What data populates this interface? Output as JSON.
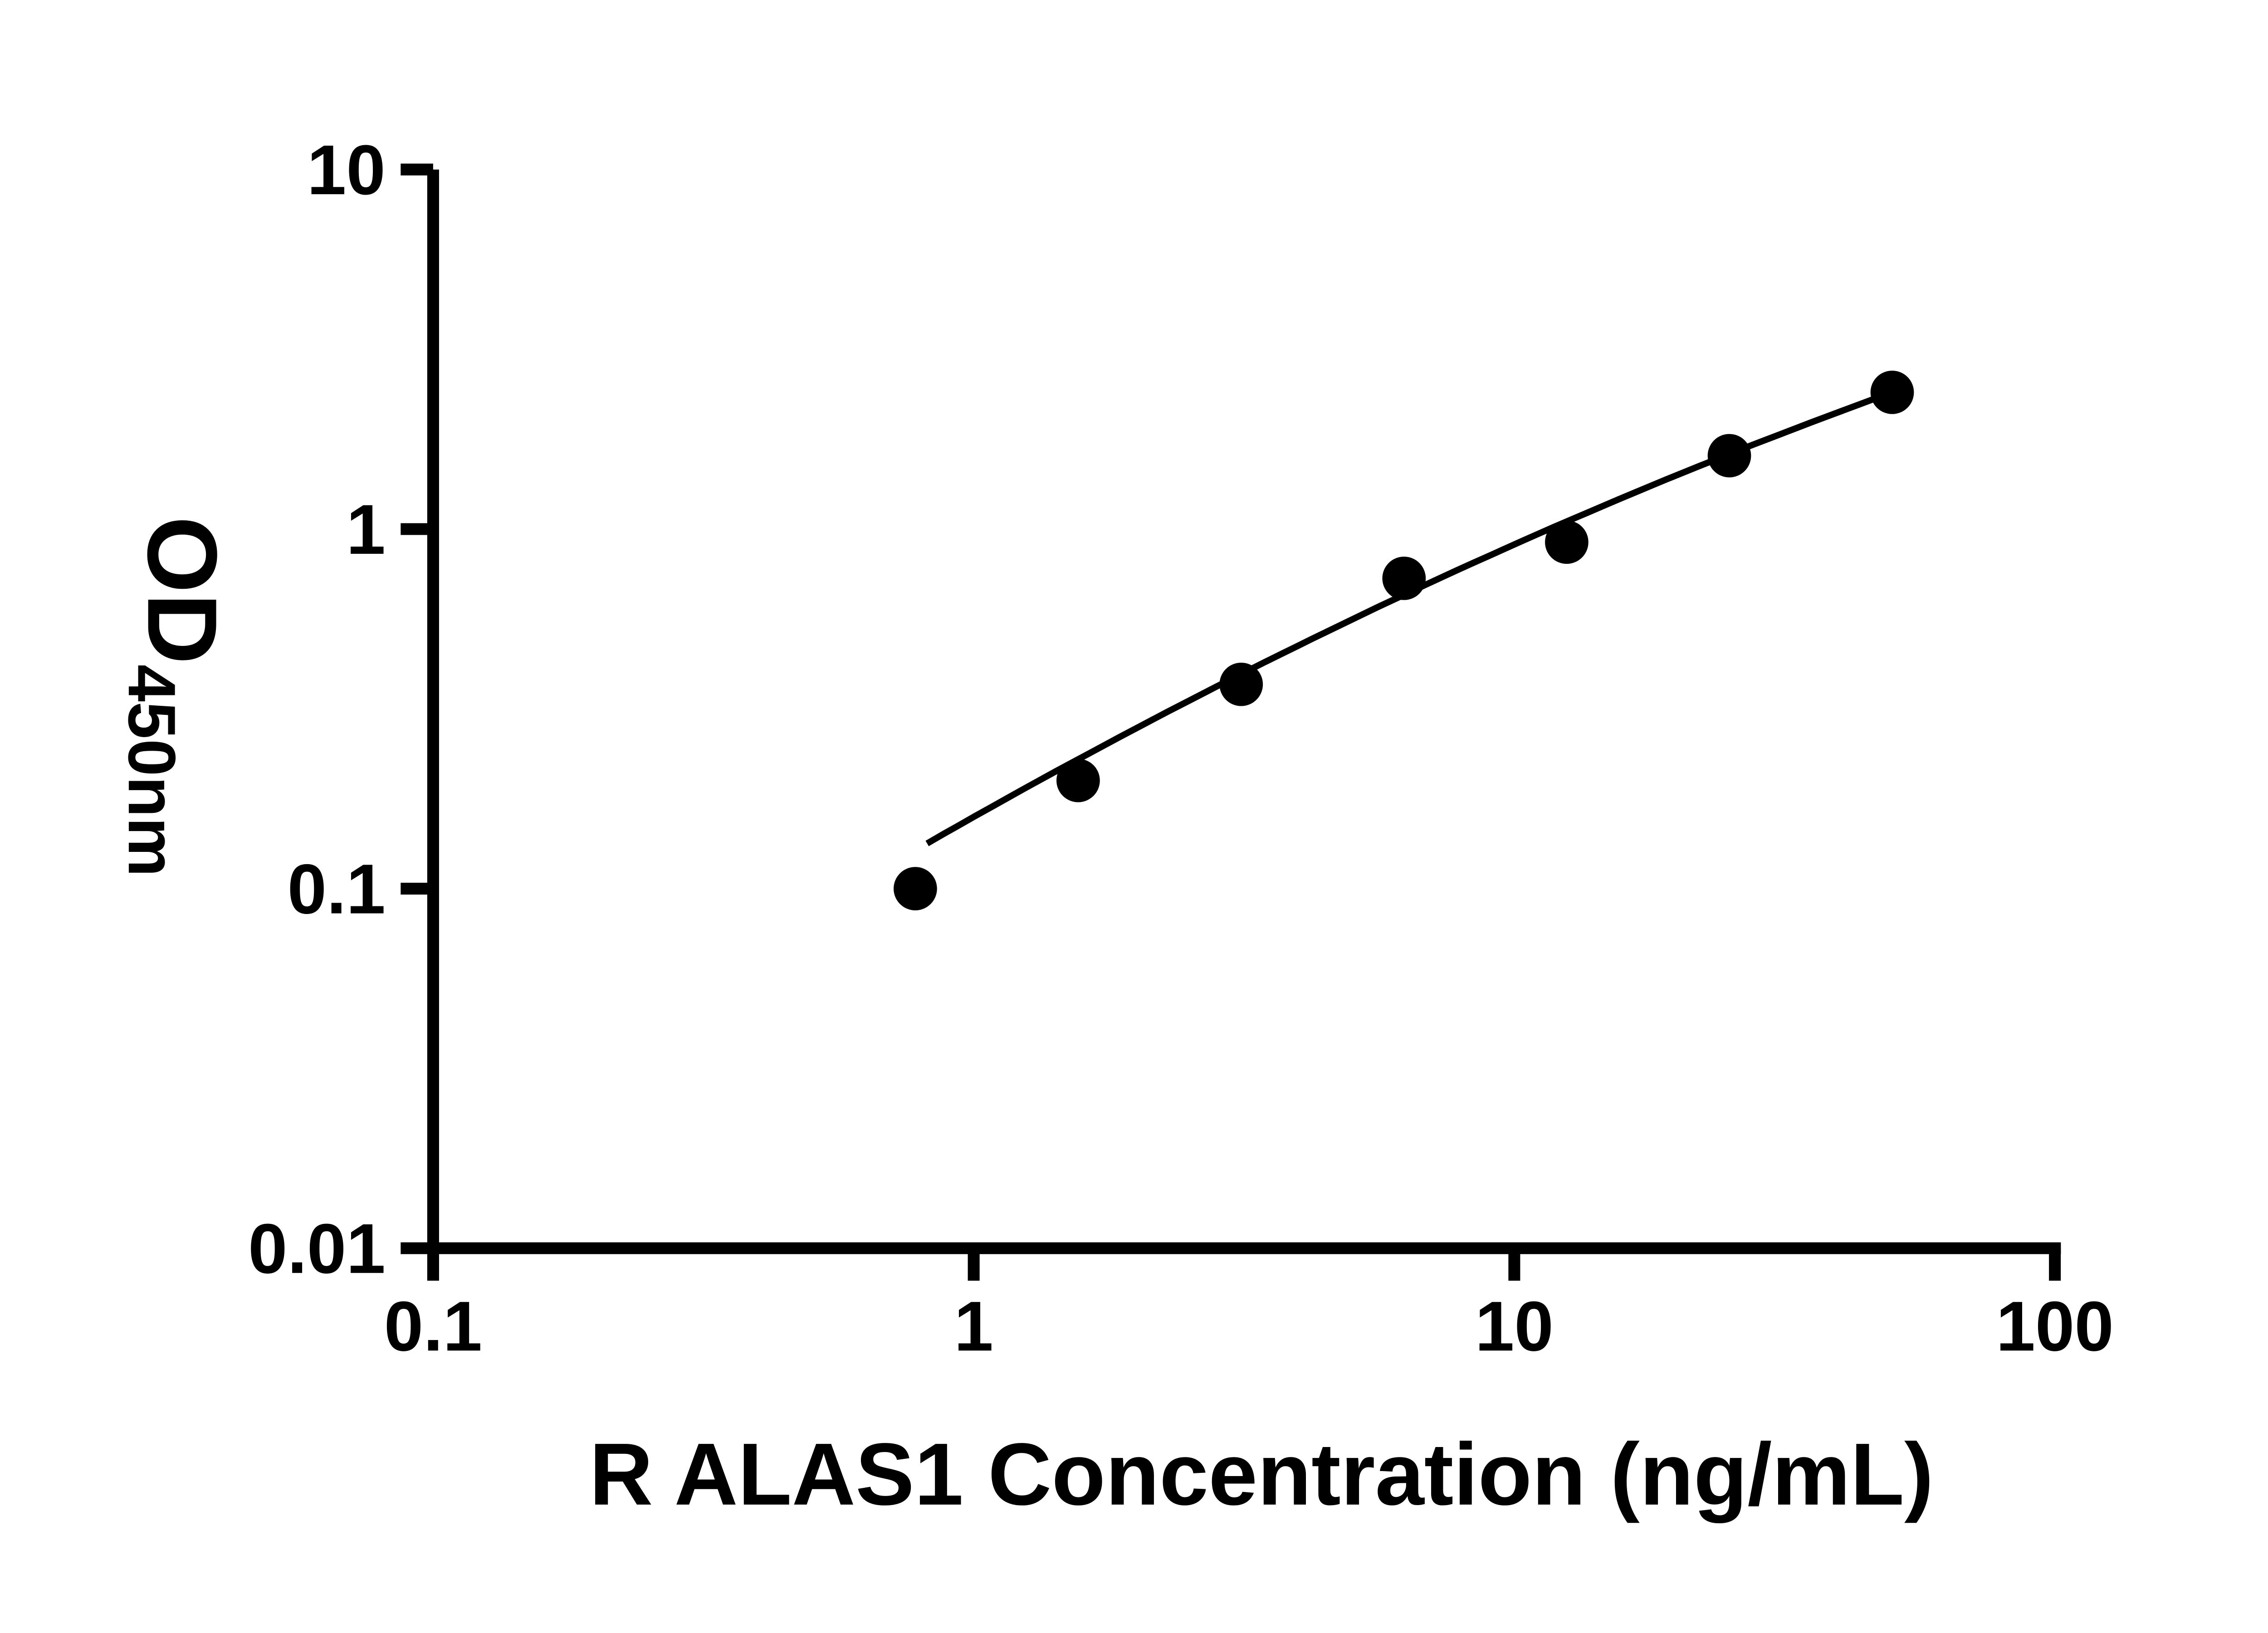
{
  "style": {
    "background": "#ffffff",
    "foreground": "#000000"
  },
  "chart_data": {
    "type": "scatter",
    "title": "",
    "xlabel": "R ALAS1 Concentration (ng/mL)",
    "ylabel": "OD",
    "ylabel_sub": "450nm",
    "x_scale": "log",
    "y_scale": "log",
    "xlim": [
      0.1,
      100
    ],
    "ylim": [
      0.01,
      10
    ],
    "grid": false,
    "legend": "none",
    "x_ticks": [
      {
        "value": 0.1,
        "label": "0.1"
      },
      {
        "value": 1,
        "label": "1"
      },
      {
        "value": 10,
        "label": "10"
      },
      {
        "value": 100,
        "label": "100"
      }
    ],
    "y_ticks": [
      {
        "value": 0.01,
        "label": "0.01"
      },
      {
        "value": 0.1,
        "label": "0.1"
      },
      {
        "value": 1,
        "label": "1"
      },
      {
        "value": 10,
        "label": "10"
      }
    ],
    "series": [
      {
        "name": "standard-points",
        "marker": "filled-circle",
        "color": "#000000",
        "points": [
          [
            0.78,
            0.1
          ],
          [
            1.56,
            0.2
          ],
          [
            3.125,
            0.37
          ],
          [
            6.25,
            0.73
          ],
          [
            12.5,
            0.92
          ],
          [
            25,
            1.6
          ],
          [
            50,
            2.4
          ]
        ]
      }
    ],
    "fit_curve": {
      "name": "fit-line",
      "color": "#000000",
      "model": "quadratic-loglog",
      "a": -0.8005,
      "b": 0.8476,
      "c": -0.0899,
      "x_start": 0.82,
      "x_end": 50
    }
  }
}
